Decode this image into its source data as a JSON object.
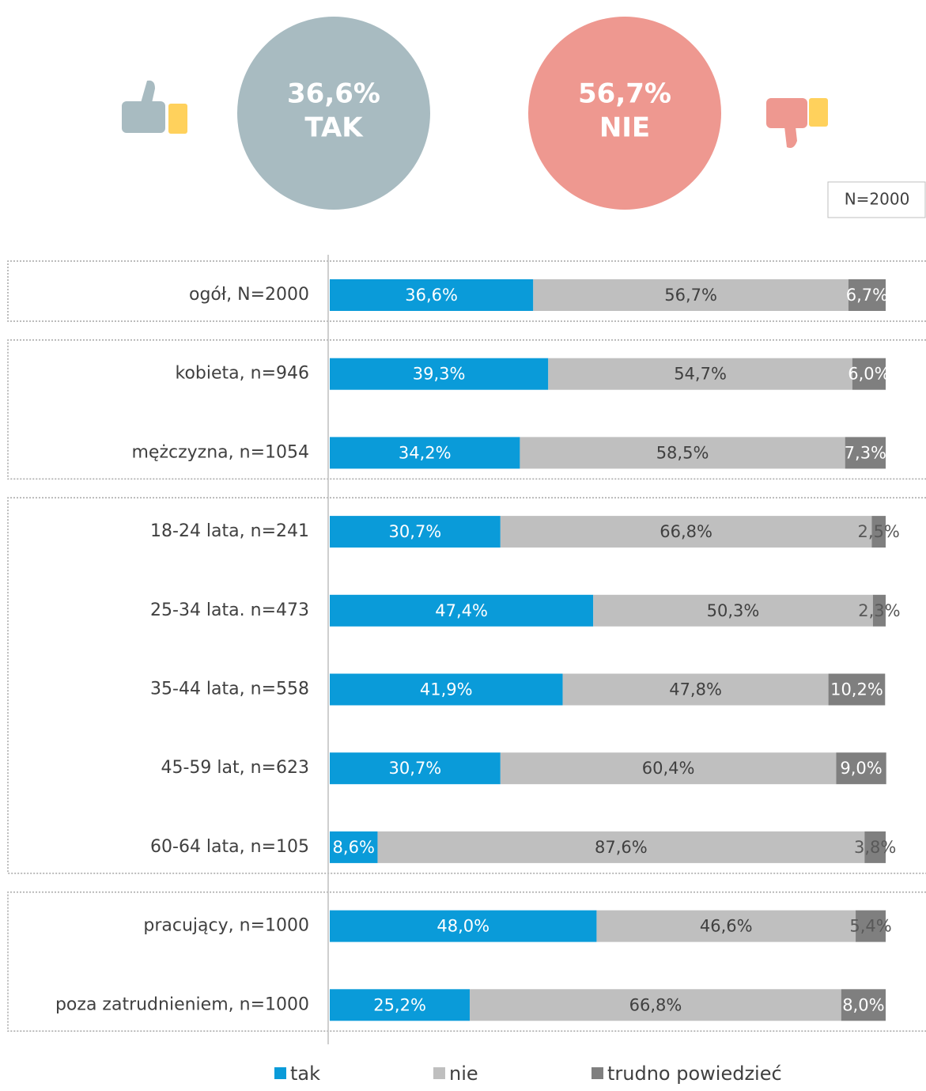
{
  "chart_data": {
    "type": "bar",
    "orientation": "horizontal",
    "stacked": true,
    "summary": [
      {
        "label": "36,6%",
        "text": "TAK",
        "color": "#a8bbc1"
      },
      {
        "label": "56,7%",
        "text": "NIE",
        "color": "#ee9890"
      }
    ],
    "note": "N=2000",
    "categories": [
      "ogół, N=2000",
      "kobieta, n=946",
      "mężczyzna, n=1054",
      "18-24 lata, n=241",
      "25-34 lata. n=473",
      "35-44 lata, n=558",
      "45-59 lat, n=623",
      "60-64 lata, n=105",
      "pracujący, n=1000",
      "poza zatrudnieniem, n=1000"
    ],
    "xlim": [
      0,
      100
    ],
    "series": [
      {
        "name": "tak",
        "color": "#0a9bd9",
        "values": [
          36.6,
          39.3,
          34.2,
          30.7,
          47.4,
          41.9,
          30.7,
          8.6,
          48.0,
          25.2
        ],
        "value_labels": [
          "36,6%",
          "39,3%",
          "34,2%",
          "30,7%",
          "47,4%",
          "41,9%",
          "30,7%",
          "8,6%",
          "48,0%",
          "25,2%"
        ]
      },
      {
        "name": "nie",
        "color": "#bfbfbf",
        "values": [
          56.7,
          54.7,
          58.5,
          66.8,
          50.3,
          47.8,
          60.4,
          87.6,
          46.6,
          66.8
        ],
        "value_labels": [
          "56,7%",
          "54,7%",
          "58,5%",
          "66,8%",
          "50,3%",
          "47,8%",
          "60,4%",
          "87,6%",
          "46,6%",
          "66,8%"
        ]
      },
      {
        "name": "trudno powiedzieć",
        "color": "#7f7f7f",
        "values": [
          6.7,
          6.0,
          7.3,
          2.5,
          2.3,
          10.2,
          9.0,
          3.8,
          5.4,
          8.0
        ],
        "value_labels": [
          "6,7%",
          "6,0%",
          "7,3%",
          "2,5%",
          "2,3%",
          "10,2%",
          "9,0%",
          "3,8%",
          "5,4%",
          "8,0%"
        ]
      }
    ]
  }
}
